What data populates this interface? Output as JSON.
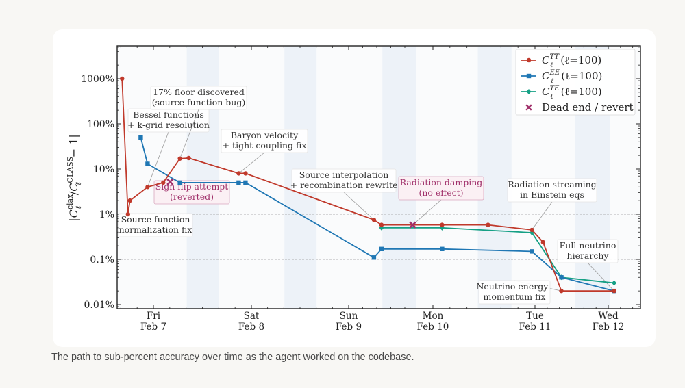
{
  "caption": "The path to sub-percent accuracy over time as the agent worked on the codebase.",
  "chart_data": {
    "type": "line",
    "title": "",
    "ylabel": "|C_ℓ^clax / C_ℓ^CLASS − 1|",
    "ylabel_parts": {
      "bar_open": "|",
      "c1": "C",
      "sup1": "clax",
      "sub1": "ℓ",
      "slash": "/",
      "c2": "C",
      "sup2": "CLASS",
      "sub2": "ℓ",
      "tail": "− 1|"
    },
    "yscale": "log",
    "ylim_percent": [
      0.007,
      3000
    ],
    "yticks": [
      {
        "value": 1000,
        "label": "1000%"
      },
      {
        "value": 100,
        "label": "100%"
      },
      {
        "value": 10,
        "label": "10%"
      },
      {
        "value": 1,
        "label": "1%"
      },
      {
        "value": 0.1,
        "label": "0.1%"
      },
      {
        "value": 0.01,
        "label": "0.01%"
      }
    ],
    "reference_lines_percent": [
      1,
      0.1
    ],
    "x_unit": "days since Fri Feb 7",
    "xlim": [
      -0.37,
      5.45
    ],
    "xticks": [
      {
        "value": 0,
        "day": "Fri",
        "date": "Feb 7"
      },
      {
        "value": 1,
        "day": "Sat",
        "date": "Feb 8"
      },
      {
        "value": 2,
        "day": "Sun",
        "date": "Feb 9"
      },
      {
        "value": 3,
        "day": "Mon",
        "date": "Feb 10"
      },
      {
        "value": 4,
        "day": "Tue",
        "date": "Feb 11"
      },
      {
        "value": 5,
        "day": "Wed",
        "date": "Feb 12"
      }
    ],
    "night_bands": [
      [
        0.34,
        0.67
      ],
      [
        1.34,
        1.67
      ],
      [
        2.4,
        2.8
      ],
      [
        3.44,
        3.77
      ],
      [
        4.55,
        5.02
      ]
    ],
    "series": [
      {
        "name": "C_ℓ^TT (ℓ=100)",
        "legend": {
          "c": "C",
          "sup": "TT",
          "sub": "ℓ",
          "rest": "(ℓ=100)"
        },
        "color": "#c0392b",
        "marker": "circle",
        "x": [
          -0.32,
          -0.26,
          -0.24,
          -0.06,
          0.1,
          0.27,
          0.36,
          0.87,
          0.94,
          2.3,
          2.39,
          3.09,
          3.54,
          3.97,
          4.11,
          4.36,
          5.08
        ],
        "y": [
          1000,
          1.0,
          2.0,
          4.0,
          5.0,
          17,
          17.5,
          8.0,
          8.0,
          0.75,
          0.58,
          0.58,
          0.58,
          0.45,
          0.24,
          0.02,
          0.02
        ]
      },
      {
        "name": "C_ℓ^EE (ℓ=100)",
        "legend": {
          "c": "C",
          "sup": "EE",
          "sub": "ℓ",
          "rest": "(ℓ=100)"
        },
        "color": "#1f77b4",
        "marker": "square",
        "x": [
          -0.13,
          -0.06,
          0.27,
          0.87,
          0.94,
          2.3,
          2.39,
          3.09,
          3.97,
          4.36,
          5.08
        ],
        "y": [
          50,
          13,
          5.0,
          5.0,
          5.0,
          0.11,
          0.17,
          0.17,
          0.15,
          0.04,
          0.02
        ]
      },
      {
        "name": "C_ℓ^TE (ℓ=100)",
        "legend": {
          "c": "C",
          "sup": "TE",
          "sub": "ℓ",
          "rest": "(ℓ=100)"
        },
        "color": "#16a085",
        "marker": "diamond",
        "x": [
          2.39,
          3.09,
          3.97,
          4.36,
          5.08
        ],
        "y": [
          0.5,
          0.5,
          0.39,
          0.04,
          0.03
        ]
      }
    ],
    "dead_ends": {
      "name": "Dead end / revert",
      "color": "#a0306a",
      "points": [
        {
          "x": 0.17,
          "y": 5.2
        },
        {
          "x": 2.76,
          "y": 0.58
        }
      ]
    },
    "annotations": [
      {
        "lines": [
          "Source function",
          "normalization fix"
        ],
        "target": {
          "x": -0.26,
          "y": 1.0
        },
        "style": "plain"
      },
      {
        "lines": [
          "Bessel functions",
          "+ k-grid resolution"
        ],
        "target": {
          "x": -0.06,
          "y": 4.0
        },
        "style": "plain"
      },
      {
        "lines": [
          "17% floor discovered",
          "(source function bug)"
        ],
        "target": {
          "x": 0.27,
          "y": 17
        },
        "style": "plain"
      },
      {
        "lines": [
          "Sign flip attempt",
          "(reverted)"
        ],
        "target": {
          "x": 0.17,
          "y": 5.2
        },
        "style": "deadend"
      },
      {
        "lines": [
          "Baryon velocity",
          "+ tight-coupling fix"
        ],
        "target": {
          "x": 0.87,
          "y": 8.0
        },
        "style": "plain"
      },
      {
        "lines": [
          "Source interpolation",
          "+ recombination rewrite"
        ],
        "target": {
          "x": 2.3,
          "y": 0.75
        },
        "style": "plain"
      },
      {
        "lines": [
          "Radiation damping",
          "(no effect)"
        ],
        "target": {
          "x": 2.76,
          "y": 0.58
        },
        "style": "deadend"
      },
      {
        "lines": [
          "Radiation streaming",
          "in Einstein eqs"
        ],
        "target": {
          "x": 3.97,
          "y": 0.45
        },
        "style": "plain"
      },
      {
        "lines": [
          "Full neutrino",
          "hierarchy"
        ],
        "target": {
          "x": 5.08,
          "y": 0.02
        },
        "style": "plain"
      },
      {
        "lines": [
          "Neutrino energy–",
          "momentum fix"
        ],
        "target": {
          "x": 4.36,
          "y": 0.02
        },
        "style": "plain"
      }
    ],
    "legend_position": "top-right",
    "grid": false
  }
}
